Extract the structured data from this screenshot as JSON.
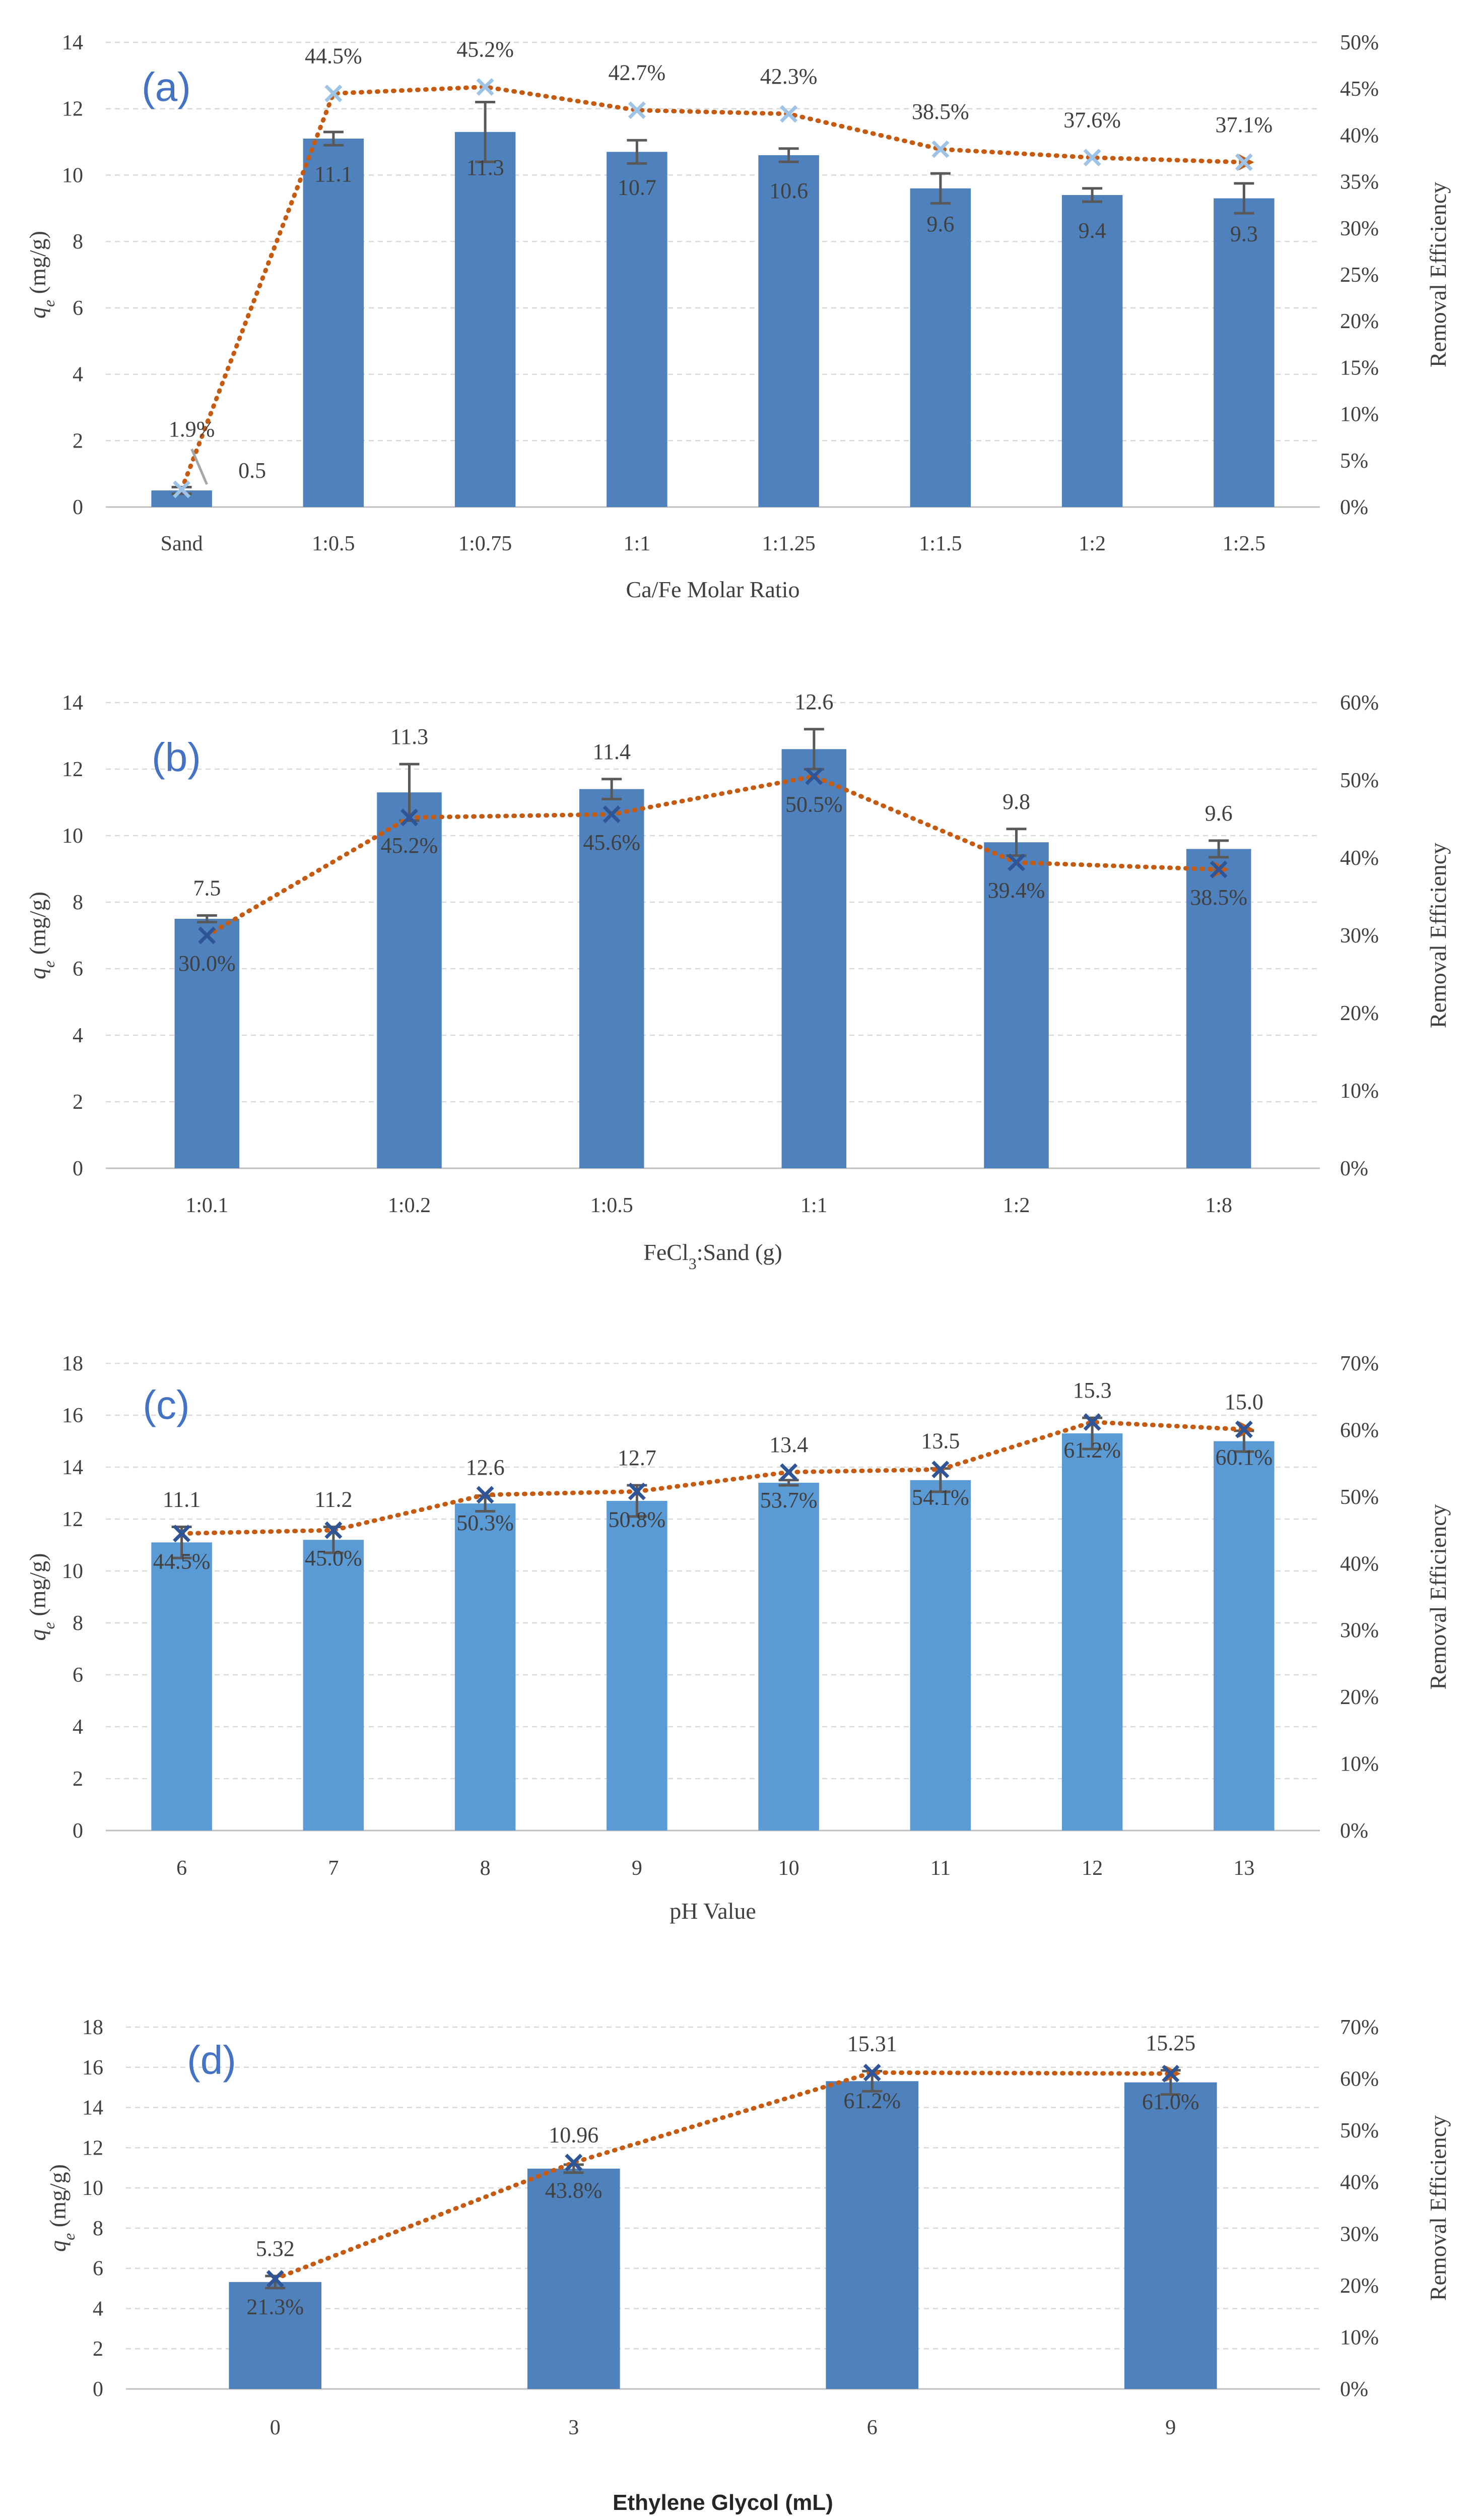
{
  "chart_data": [
    {
      "type": "bar",
      "panel_label": "(a)",
      "categories": [
        "Sand",
        "1:0.5",
        "1:0.75",
        "1:1",
        "1:1.25",
        "1:1.5",
        "1:2",
        "1:2.5"
      ],
      "values": [
        0.5,
        11.1,
        11.3,
        10.7,
        10.6,
        9.6,
        9.4,
        9.3
      ],
      "error": [
        0.1,
        0.2,
        0.9,
        0.35,
        0.2,
        0.45,
        0.2,
        0.45
      ],
      "value_labels": [
        "0.5",
        "11.1",
        "11.3",
        "10.7",
        "10.6",
        "9.6",
        "9.4",
        "9.3"
      ],
      "efficiency": [
        1.9,
        44.5,
        45.2,
        42.7,
        42.3,
        38.5,
        37.6,
        37.1
      ],
      "efficiency_labels": [
        "1.9%",
        "44.5%",
        "45.2%",
        "42.7%",
        "42.3%",
        "38.5%",
        "37.6%",
        "37.1%"
      ],
      "xlabel": "Ca/Fe Molar Ratio",
      "ylabel": "qe (mg/g)",
      "ylabel_main": "q",
      "ylabel_sub": "e",
      "ylabel_rest": " (mg/g)",
      "y2label": "Removal Efficiency",
      "ylim": [
        0,
        14
      ],
      "yticks": [
        "0",
        "2",
        "4",
        "6",
        "8",
        "10",
        "12",
        "14"
      ],
      "y2lim": [
        0,
        50
      ],
      "y2ticks": [
        "0%",
        "5%",
        "10%",
        "15%",
        "20%",
        "25%",
        "30%",
        "35%",
        "40%",
        "45%",
        "50%"
      ],
      "bar_color": "#4f81bd",
      "marker_color": "#9dc3e6",
      "line_color": "#c55a11"
    },
    {
      "type": "bar",
      "panel_label": "(b)",
      "categories": [
        "1:0.1",
        "1:0.2",
        "1:0.5",
        "1:1",
        "1:2",
        "1:8"
      ],
      "values": [
        7.5,
        11.3,
        11.4,
        12.6,
        9.8,
        9.6
      ],
      "error": [
        0.1,
        0.85,
        0.3,
        0.6,
        0.4,
        0.25
      ],
      "value_labels": [
        "7.5",
        "11.3",
        "11.4",
        "12.6",
        "9.8",
        "9.6"
      ],
      "efficiency": [
        30.0,
        45.2,
        45.6,
        50.5,
        39.4,
        38.5
      ],
      "efficiency_labels": [
        "30.0%",
        "45.2%",
        "45.6%",
        "50.5%",
        "39.4%",
        "38.5%"
      ],
      "xlabel_main": "FeCl",
      "xlabel_sub": "3",
      "xlabel_rest": ":Sand (g)",
      "ylabel_main": "q",
      "ylabel_sub": "e",
      "ylabel_rest": " (mg/g)",
      "y2label": "Removal Efficiency",
      "ylim": [
        0,
        14
      ],
      "yticks": [
        "0",
        "2",
        "4",
        "6",
        "8",
        "10",
        "12",
        "14"
      ],
      "y2lim": [
        0,
        60
      ],
      "y2ticks": [
        "0%",
        "10%",
        "20%",
        "30%",
        "40%",
        "50%",
        "60%"
      ],
      "bar_color": "#4f81bd",
      "marker_color": "#2f5597",
      "line_color": "#c55a11"
    },
    {
      "type": "bar",
      "panel_label": "(c)",
      "categories": [
        "6",
        "7",
        "8",
        "9",
        "10",
        "11",
        "12",
        "13"
      ],
      "values": [
        11.1,
        11.2,
        12.6,
        12.7,
        13.4,
        13.5,
        15.3,
        15.0
      ],
      "error": [
        0.6,
        0.5,
        0.3,
        0.6,
        0.1,
        0.45,
        0.6,
        0.4
      ],
      "value_labels": [
        "11.1",
        "11.2",
        "12.6",
        "12.7",
        "13.4",
        "13.5",
        "15.3",
        "15.0"
      ],
      "efficiency": [
        44.5,
        45.0,
        50.3,
        50.8,
        53.7,
        54.1,
        61.2,
        60.1
      ],
      "efficiency_labels": [
        "44.5%",
        "45.0%",
        "50.3%",
        "50.8%",
        "53.7%",
        "54.1%",
        "61.2%",
        "60.1%"
      ],
      "xlabel": "pH Value",
      "ylabel_main": "q",
      "ylabel_sub": "e",
      "ylabel_rest": " (mg/g)",
      "y2label": "Removal Efficiency",
      "ylim": [
        0,
        18
      ],
      "yticks": [
        "0",
        "2",
        "4",
        "6",
        "8",
        "10",
        "12",
        "14",
        "16",
        "18"
      ],
      "y2lim": [
        0,
        70
      ],
      "y2ticks": [
        "0%",
        "10%",
        "20%",
        "30%",
        "40%",
        "50%",
        "60%",
        "70%"
      ],
      "bar_color": "#5b9bd5",
      "marker_color": "#2f5597",
      "line_color": "#c55a11"
    },
    {
      "type": "bar",
      "panel_label": "(d)",
      "categories": [
        "0",
        "3",
        "6",
        "9"
      ],
      "values": [
        5.32,
        10.96,
        15.31,
        15.25
      ],
      "error": [
        0.3,
        0.2,
        0.5,
        0.6
      ],
      "value_labels": [
        "5.32",
        "10.96",
        "15.31",
        "15.25"
      ],
      "efficiency": [
        21.3,
        43.8,
        61.2,
        61.0
      ],
      "efficiency_labels": [
        "21.3%",
        "43.8%",
        "61.2%",
        "61.0%"
      ],
      "xlabel": "Ethylene Glycol  (mL)",
      "ylabel_main": "q",
      "ylabel_sub": "e",
      "ylabel_rest": " (mg/g)",
      "y2label": "Removal Efficiency",
      "ylim": [
        0,
        18
      ],
      "yticks": [
        "0",
        "2",
        "4",
        "6",
        "8",
        "10",
        "12",
        "14",
        "16",
        "18"
      ],
      "y2lim": [
        0,
        70
      ],
      "y2ticks": [
        "0%",
        "10%",
        "20%",
        "30%",
        "40%",
        "50%",
        "60%",
        "70%"
      ],
      "bar_color": "#4f81bd",
      "marker_color": "#2f5597",
      "line_color": "#c55a11"
    }
  ]
}
